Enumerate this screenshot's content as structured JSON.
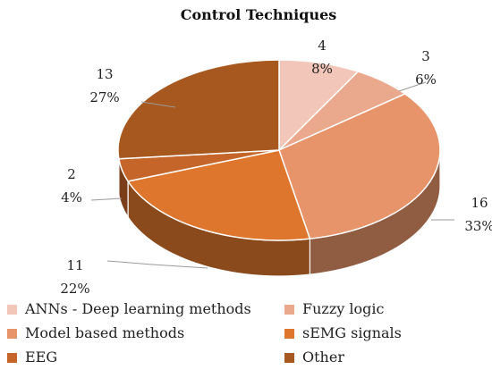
{
  "chart_data": {
    "type": "pie",
    "title": "Control Techniques",
    "slices": [
      {
        "label": "ANNs - Deep learning methods",
        "value": 4,
        "percent": "8%",
        "color": "#f2c6b8"
      },
      {
        "label": "Fuzzy logic",
        "value": 3,
        "percent": "6%",
        "color": "#eaa98c"
      },
      {
        "label": "Model based methods",
        "value": 16,
        "percent": "33%",
        "color": "#e8946a"
      },
      {
        "label": "sEMG signals",
        "value": 11,
        "percent": "22%",
        "color": "#de772d"
      },
      {
        "label": "EEG",
        "value": 2,
        "percent": "4%",
        "color": "#c5652a"
      },
      {
        "label": "Other",
        "value": 13,
        "percent": "27%",
        "color": "#a7581f"
      }
    ],
    "legend_position": "bottom",
    "style": "3d"
  }
}
